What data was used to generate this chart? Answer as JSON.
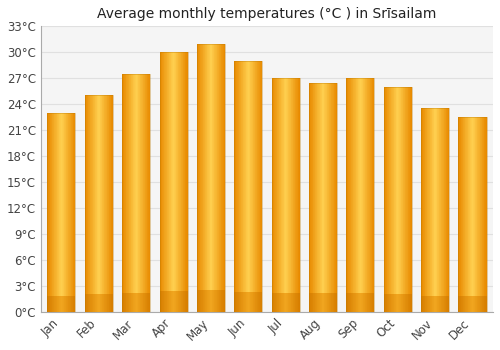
{
  "title": "Average monthly temperatures (°C ) in Srīsailam",
  "months": [
    "Jan",
    "Feb",
    "Mar",
    "Apr",
    "May",
    "Jun",
    "Jul",
    "Aug",
    "Sep",
    "Oct",
    "Nov",
    "Dec"
  ],
  "values": [
    23.0,
    25.0,
    27.5,
    30.0,
    31.0,
    29.0,
    27.0,
    26.5,
    27.0,
    26.0,
    23.5,
    22.5
  ],
  "ylim": [
    0,
    33
  ],
  "yticks": [
    0,
    3,
    6,
    9,
    12,
    15,
    18,
    21,
    24,
    27,
    30,
    33
  ],
  "ytick_labels": [
    "0°C",
    "3°C",
    "6°C",
    "9°C",
    "12°C",
    "15°C",
    "18°C",
    "21°C",
    "24°C",
    "27°C",
    "30°C",
    "33°C"
  ],
  "bar_color_center": "#FFD050",
  "bar_color_edge": "#E88A00",
  "bar_color_bottom": "#CC7700",
  "background_color": "#ffffff",
  "plot_bg_color": "#f5f5f5",
  "grid_color": "#e0e0e0",
  "title_fontsize": 10,
  "tick_fontsize": 8.5,
  "bar_width": 0.75,
  "figsize": [
    5.0,
    3.5
  ],
  "dpi": 100
}
